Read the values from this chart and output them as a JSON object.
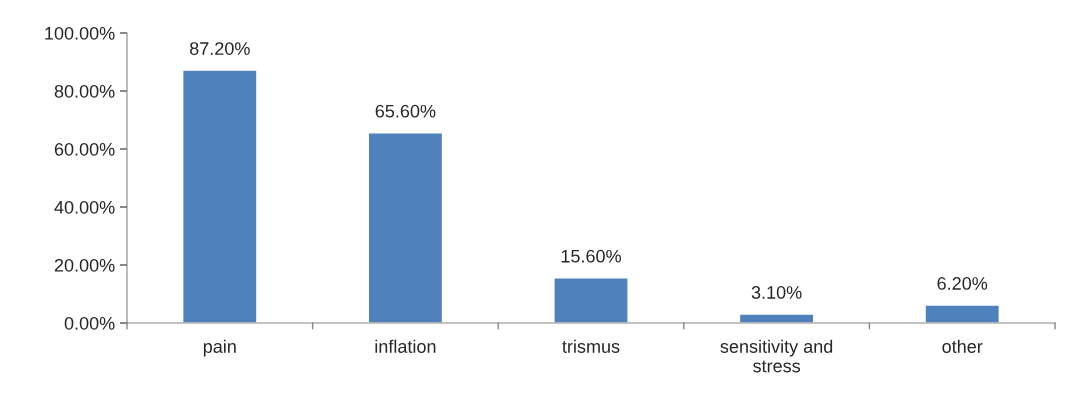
{
  "chart_data": {
    "type": "bar",
    "categories": [
      "pain",
      "inflation",
      "trismus",
      "sensitivity and\nstress",
      "other"
    ],
    "values": [
      87.2,
      65.6,
      15.6,
      3.1,
      6.2
    ],
    "value_labels": [
      "87.20%",
      "65.60%",
      "15.60%",
      "3.10%",
      "6.20%"
    ],
    "color": "#4f81bd",
    "ylim": [
      0,
      100
    ],
    "yticks": [
      {
        "value": 0,
        "label": "0.00%"
      },
      {
        "value": 20,
        "label": "20.00%"
      },
      {
        "value": 40,
        "label": "40.00%"
      },
      {
        "value": 60,
        "label": "60.00%"
      },
      {
        "value": 80,
        "label": "80.00%"
      },
      {
        "value": 100,
        "label": "100.00%"
      }
    ],
    "grid": false,
    "legend": false
  }
}
